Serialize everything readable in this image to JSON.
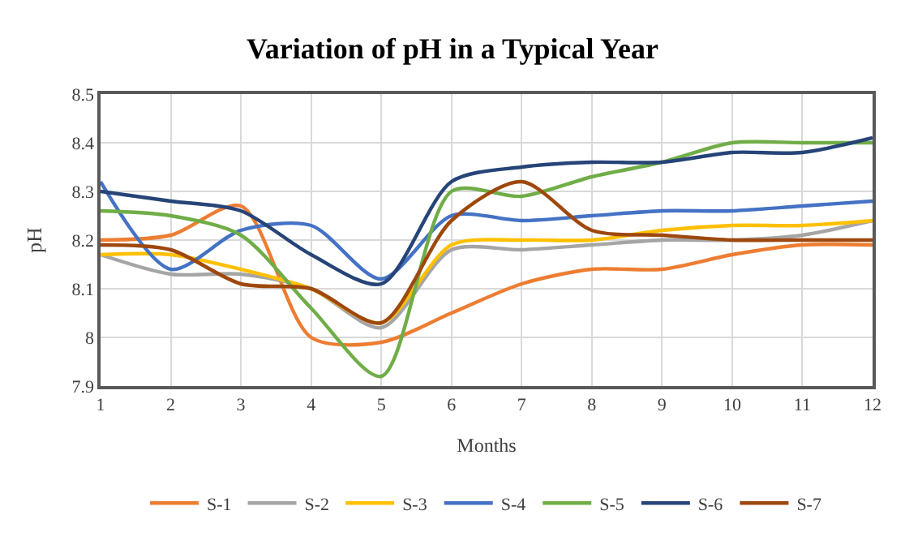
{
  "chart_data": {
    "type": "line",
    "title": "Variation of pH in a Typical Year",
    "xlabel": "Months",
    "ylabel": "pH",
    "x": [
      1,
      2,
      3,
      4,
      5,
      6,
      7,
      8,
      9,
      10,
      11,
      12
    ],
    "xlim": [
      1,
      12
    ],
    "xticks": [
      1,
      2,
      3,
      4,
      5,
      6,
      7,
      8,
      9,
      10,
      11,
      12
    ],
    "ylim": [
      7.9,
      8.5
    ],
    "yticks": [
      7.9,
      8,
      8.1,
      8.2,
      8.3,
      8.4,
      8.5
    ],
    "grid": true,
    "legend": "bottom",
    "marker": "none",
    "line_style": "solid",
    "series": [
      {
        "name": "S-1",
        "color": "#ed7d31",
        "values": [
          8.2,
          8.21,
          8.27,
          8.0,
          7.99,
          8.05,
          8.11,
          8.14,
          8.14,
          8.17,
          8.19,
          8.19
        ]
      },
      {
        "name": "S-2",
        "color": "#a5a5a5",
        "values": [
          8.17,
          8.13,
          8.13,
          8.1,
          8.02,
          8.18,
          8.18,
          8.19,
          8.2,
          8.2,
          8.21,
          8.24
        ]
      },
      {
        "name": "S-3",
        "color": "#ffc000",
        "values": [
          8.17,
          8.17,
          8.14,
          8.1,
          8.03,
          8.19,
          8.2,
          8.2,
          8.22,
          8.23,
          8.23,
          8.24
        ]
      },
      {
        "name": "S-4",
        "color": "#4472c4",
        "values": [
          8.32,
          8.14,
          8.22,
          8.23,
          8.12,
          8.25,
          8.24,
          8.25,
          8.26,
          8.26,
          8.27,
          8.28
        ]
      },
      {
        "name": "S-5",
        "color": "#70ad47",
        "values": [
          8.26,
          8.25,
          8.21,
          8.06,
          7.92,
          8.3,
          8.29,
          8.33,
          8.36,
          8.4,
          8.4,
          8.4
        ]
      },
      {
        "name": "S-6",
        "color": "#264478",
        "values": [
          8.3,
          8.28,
          8.26,
          8.17,
          8.11,
          8.32,
          8.35,
          8.36,
          8.36,
          8.38,
          8.38,
          8.41
        ]
      },
      {
        "name": "S-7",
        "color": "#9e480e",
        "values": [
          8.19,
          8.18,
          8.11,
          8.1,
          8.03,
          8.24,
          8.32,
          8.22,
          8.21,
          8.2,
          8.2,
          8.2
        ]
      }
    ]
  }
}
